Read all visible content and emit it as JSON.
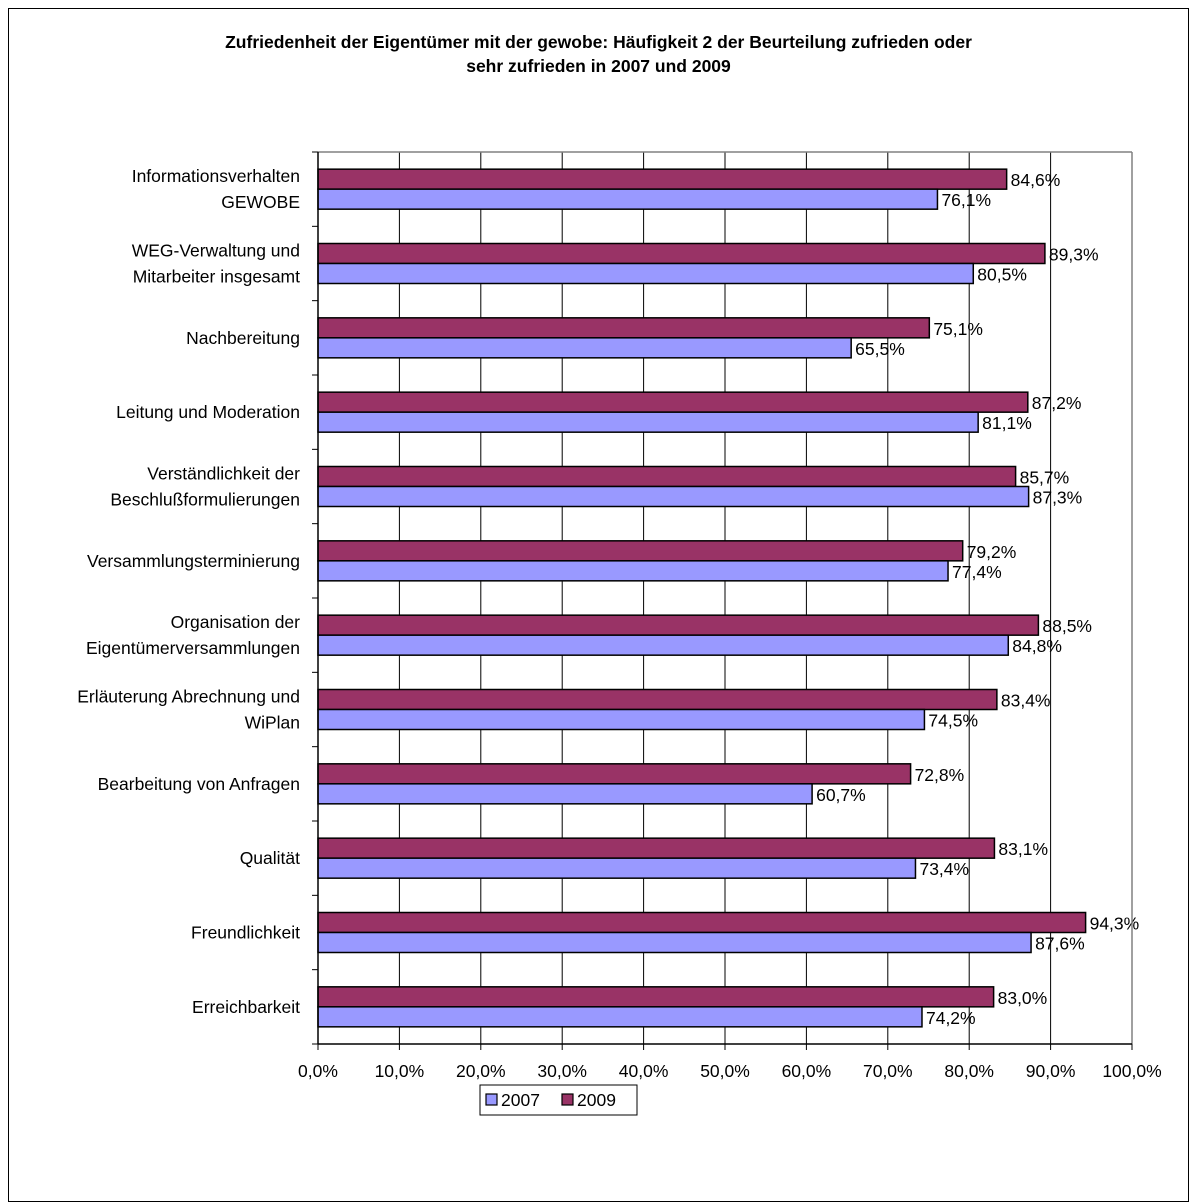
{
  "chart_data": {
    "type": "bar",
    "orientation": "horizontal",
    "title_lines": [
      "Zufriedenheit der Eigentümer mit der gewobe: Häufigkeit 2 der Beurteilung zufrieden oder",
      "sehr zufrieden in 2007 und 2009"
    ],
    "categories": [
      [
        "Informationsverhalten",
        "GEWOBE"
      ],
      [
        "WEG-Verwaltung und",
        "Mitarbeiter insgesamt"
      ],
      [
        "Nachbereitung"
      ],
      [
        "Leitung und Moderation"
      ],
      [
        "Verständlichkeit der",
        "Beschlußformulierungen"
      ],
      [
        "Versammlungsterminierung"
      ],
      [
        "Organisation der",
        "Eigentümerversammlungen"
      ],
      [
        "Erläuterung Abrechnung und",
        "WiPlan"
      ],
      [
        "Bearbeitung von Anfragen"
      ],
      [
        "Qualität"
      ],
      [
        "Freundlichkeit"
      ],
      [
        "Erreichbarkeit"
      ]
    ],
    "series": [
      {
        "name": "2009",
        "color": "#993366",
        "values": [
          84.6,
          89.3,
          75.1,
          87.2,
          85.7,
          79.2,
          88.5,
          83.4,
          72.8,
          83.1,
          94.3,
          83.0
        ],
        "labels": [
          "84,6%",
          "89,3%",
          "75,1%",
          "87,2%",
          "85,7%",
          "79,2%",
          "88,5%",
          "83,4%",
          "72,8%",
          "83,1%",
          "94,3%",
          "83,0%"
        ]
      },
      {
        "name": "2007",
        "color": "#9999ff",
        "values": [
          76.1,
          80.5,
          65.5,
          81.1,
          87.3,
          77.4,
          84.8,
          74.5,
          60.7,
          73.4,
          87.6,
          74.2
        ],
        "labels": [
          "76,1%",
          "80,5%",
          "65,5%",
          "81,1%",
          "87,3%",
          "77,4%",
          "84,8%",
          "74,5%",
          "60,7%",
          "73,4%",
          "87,6%",
          "74,2%"
        ]
      }
    ],
    "xlim": [
      0,
      100
    ],
    "xticks": [
      "0,0%",
      "10,0%",
      "20,0%",
      "30,0%",
      "40,0%",
      "50,0%",
      "60,0%",
      "70,0%",
      "80,0%",
      "90,0%",
      "100,0%"
    ],
    "grid": true,
    "legend": {
      "position": "bottom",
      "entries": [
        {
          "name": "2007",
          "color": "#9999ff"
        },
        {
          "name": "2009",
          "color": "#993366"
        }
      ]
    },
    "plot_border_color": "#808080",
    "gridline_color": "#000000"
  }
}
